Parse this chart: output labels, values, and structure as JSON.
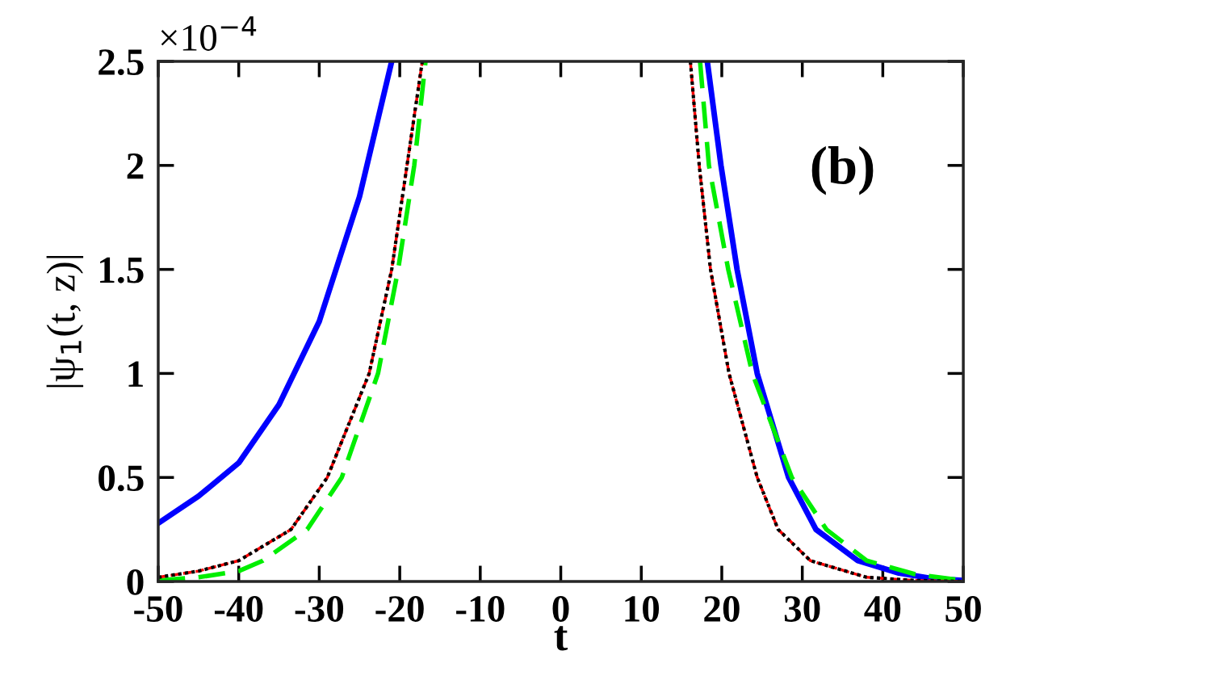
{
  "chart_data": {
    "type": "line",
    "xlabel": "t",
    "ylabel": "|ψ$_{1}$(t, z)|",
    "xlim": [
      -50,
      50
    ],
    "xticks": [
      -50,
      -40,
      -30,
      -20,
      -10,
      0,
      10,
      20,
      30,
      40,
      50
    ],
    "ylim": [
      0,
      2.5
    ],
    "yticks": [
      0,
      0.5,
      1,
      1.5,
      2,
      2.5
    ],
    "grid": false,
    "legend": false,
    "annotations": [
      "×10$^{−4}$",
      "(b)"
    ],
    "series": [
      {
        "color": "#0000ff",
        "line_style": "solid",
        "x": [
          -50,
          -45,
          -40,
          -35,
          -30,
          -25,
          -21,
          null,
          18.2,
          19.9,
          21.9,
          24.4,
          28.3,
          31.7,
          36.9,
          42,
          46,
          50
        ],
        "values": [
          0.28,
          0.41,
          0.57,
          0.85,
          1.25,
          1.85,
          2.5,
          null,
          2.5,
          2.0,
          1.5,
          1.0,
          0.5,
          0.25,
          0.1,
          0.04,
          0.015,
          0.005
        ]
      },
      {
        "color": "#00ee00",
        "line_style": "dashed",
        "x": [
          -50,
          -45,
          -40,
          -37,
          -31.5,
          -27.2,
          -22.7,
          -20.2,
          -18.2,
          -16.8,
          null,
          17.3,
          18.4,
          20.8,
          23.8,
          28.7,
          33,
          38,
          44,
          49
        ],
        "values": [
          0.005,
          0.02,
          0.05,
          0.1,
          0.25,
          0.5,
          1.0,
          1.5,
          2.0,
          2.5,
          null,
          2.5,
          2.0,
          1.5,
          1.0,
          0.5,
          0.25,
          0.1,
          0.035,
          0.01
        ]
      },
      {
        "color": "#ff0000",
        "line_style": "dashed",
        "x": [
          -50,
          -45,
          -40,
          -33.5,
          -29,
          -23.8,
          -21,
          -19.1,
          -17.2,
          null,
          16.1,
          17.2,
          18.6,
          20.9,
          24.4,
          27,
          31,
          38,
          44,
          50
        ],
        "values": [
          0.02,
          0.05,
          0.1,
          0.25,
          0.5,
          1.0,
          1.5,
          2.0,
          2.5,
          null,
          2.5,
          2.0,
          1.5,
          1.0,
          0.5,
          0.25,
          0.1,
          0.02,
          0.005,
          0.0
        ]
      },
      {
        "color": "#000000",
        "line_style": "dotted",
        "x": [
          -50,
          -45,
          -40,
          -33.5,
          -29,
          -23.8,
          -21,
          -19.1,
          -17.2,
          null,
          16.1,
          17.2,
          18.6,
          20.9,
          24.4,
          27,
          31,
          38,
          44,
          50
        ],
        "values": [
          0.02,
          0.05,
          0.1,
          0.25,
          0.5,
          1.0,
          1.5,
          2.0,
          2.5,
          null,
          2.5,
          2.0,
          1.5,
          1.0,
          0.5,
          0.25,
          0.1,
          0.02,
          0.005,
          0.0
        ]
      }
    ]
  }
}
